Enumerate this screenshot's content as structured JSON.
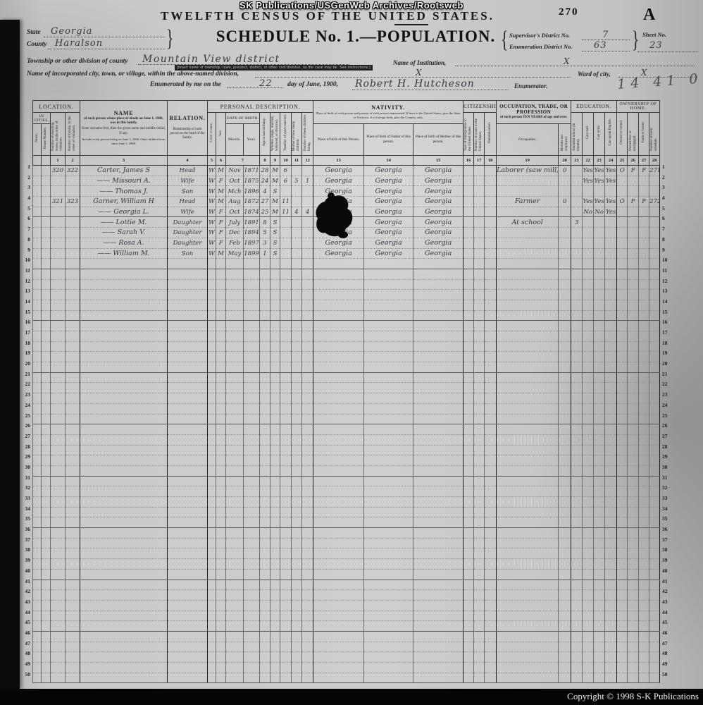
{
  "banner": {
    "text": "SK Publications/USGenWeb Archives/Rootsweb"
  },
  "header": {
    "census_title": "TWELFTH CENSUS OF THE UNITED STATES.",
    "page_stamp": "270",
    "sheet_letter": "A",
    "schedule_title": "SCHEDULE No. 1.—POPULATION.",
    "state_label": "State",
    "state_value": "Georgia",
    "county_label": "County",
    "county_value": "Haralson",
    "supervisor_label": "Supervisor's District No.",
    "supervisor_value": "7",
    "enumeration_label": "Enumeration District No.",
    "enumeration_value": "63",
    "sheet_label": "Sheet No.",
    "sheet_value": "23",
    "township_label": "Township or other division of county",
    "township_value": "Mountain View district",
    "township_note": "[Insert name of township, town, precinct, district, or other civil division, as the case may be.  See instructions.]",
    "institution_label": "Name of Institution,",
    "institution_value": "X",
    "city_label": "Name of incorporated city, town, or village, within the above-named division,",
    "city_value": "X",
    "ward_label": "Ward of city,",
    "ward_value": "X",
    "enumerated_prefix": "Enumerated by me on the",
    "enumerated_day": "22",
    "enumerated_suffix": "day of June, 1900,",
    "enumerator_name": "Robert H. Hutcheson",
    "enumerator_label": "Enumerator.",
    "margin_scribble": "14 41 01"
  },
  "table": {
    "groups": {
      "location": "LOCATION.",
      "in_cities": "IN CITIES.",
      "name": "NAME",
      "relation": "RELATION.",
      "personal": "PERSONAL DESCRIPTION.",
      "dob": "DATE OF BIRTH.",
      "nativity": "NATIVITY.",
      "citizenship": "CITIZENSHIP.",
      "occupation_title": "OCCUPATION, TRADE, OR PROFESSION",
      "occupation_sub": "of each person TEN YEARS of age and over.",
      "education": "EDUCATION.",
      "ownership": "OWNERSHIP OF HOME."
    },
    "columns": {
      "name_desc1": "of each person whose place of abode on June 1, 1900, was in this family.",
      "name_desc2": "Enter surname first, then the given name and middle initial, if any.",
      "name_desc3": "Include every person living on June 1, 1900. Omit children born since June 1, 1900.",
      "relation_desc": "Relationship of each person to the head of the family.",
      "nativity_desc": "Place of birth of each person and parents of each person enumerated.  If born in the United States, give the State or Territory; if of foreign birth, give the Country only.",
      "street": "Street.",
      "house": "House Number.",
      "dwelling": "Number of dwelling house, in the order of visitation.",
      "family": "Number of family, in the order of visitation.",
      "color": "Color or race.",
      "sex": "Sex.",
      "month": "Month.",
      "year": "Year.",
      "age": "Age at last birthday.",
      "marital": "Whether single, married, widowed, or divorced.",
      "yrs_married": "Number of years married.",
      "mother": "Mother of how many children.",
      "living": "Number of these children living.",
      "pob": "Place of birth of this Person.",
      "pob_father": "Place of birth of Father of this person.",
      "pob_mother": "Place of birth of Mother of this person.",
      "immig": "Year of immigration to the United States.",
      "yrs_us": "Number of years in the United States.",
      "natural": "Naturalization.",
      "occupation_col": "Occupation.",
      "months_unemp": "Months not employed.",
      "school": "Attended school (in months).",
      "read": "Can read.",
      "write": "Can write.",
      "english": "Can speak English.",
      "owned": "Owned or rented.",
      "free_mort": "Owned free or mortgaged.",
      "farm_house": "Farm or house.",
      "farm_sched": "Number of farm schedule."
    },
    "numbers": [
      "1",
      "2",
      "3",
      "4",
      "5",
      "6",
      "7",
      "8",
      "9",
      "10",
      "11",
      "12",
      "13",
      "14",
      "15",
      "16",
      "17",
      "18",
      "19",
      "20",
      "21",
      "22",
      "23",
      "24",
      "25",
      "26",
      "27",
      "28"
    ],
    "row_count": 50,
    "rows": [
      {
        "n": 1,
        "cells": [
          "",
          "",
          "320",
          "322",
          "Carter, James S",
          "Head",
          "W",
          "M",
          "Nov",
          "1871",
          "28",
          "M",
          "6",
          "",
          "",
          "Georgia",
          "Georgia",
          "Georgia",
          "",
          "",
          "",
          "Laborer (saw mill)",
          "0",
          "",
          "Yes",
          "Yes",
          "Yes",
          "O",
          "F",
          "F",
          "271"
        ]
      },
      {
        "n": 2,
        "cells": [
          "",
          "",
          "",
          "",
          "—— Missouri A.",
          "Wife",
          "W",
          "F",
          "Oct",
          "1875",
          "24",
          "M",
          "6",
          "5",
          "1",
          "Georgia",
          "Georgia",
          "Georgia",
          "",
          "",
          "",
          "",
          "",
          "",
          "Yes",
          "Yes",
          "Yes",
          "",
          "",
          "",
          ""
        ]
      },
      {
        "n": 3,
        "cells": [
          "",
          "",
          "",
          "",
          "—— Thomas J.",
          "Son",
          "W",
          "M",
          "Mch",
          "1896",
          "4",
          "S",
          "",
          "",
          "",
          "Georgia",
          "Georgia",
          "Georgia",
          "",
          "",
          "",
          "",
          "",
          "",
          "",
          "",
          "",
          "",
          "",
          "",
          ""
        ]
      },
      {
        "n": 4,
        "cells": [
          "",
          "",
          "321",
          "323",
          "Garner, William H",
          "Head",
          "W",
          "M",
          "Aug",
          "1872",
          "27",
          "M",
          "11",
          "",
          "",
          "Georgia",
          "Georgia",
          "Georgia",
          "",
          "",
          "",
          "Farmer",
          "0",
          "",
          "Yes",
          "Yes",
          "Yes",
          "O",
          "F",
          "F",
          "272"
        ]
      },
      {
        "n": 5,
        "cells": [
          "",
          "",
          "",
          "",
          "—— Georgia L.",
          "Wife",
          "W",
          "F",
          "Oct",
          "1874",
          "25",
          "M",
          "11",
          "4",
          "4",
          "Georgia",
          "Georgia",
          "Georgia",
          "",
          "",
          "",
          "",
          "",
          "",
          "No",
          "No",
          "Yes",
          "",
          "",
          "",
          ""
        ]
      },
      {
        "n": 6,
        "cells": [
          "",
          "",
          "",
          "",
          "—— Lottie M.",
          "Daughter",
          "W",
          "F",
          "July",
          "1891",
          "8",
          "S",
          "",
          "",
          "",
          "Georgia",
          "Georgia",
          "Georgia",
          "",
          "",
          "",
          "At school",
          "",
          "3",
          "",
          "",
          "",
          "",
          "",
          "",
          ""
        ]
      },
      {
        "n": 7,
        "cells": [
          "",
          "",
          "",
          "",
          "—— Sarah V.",
          "Daughter",
          "W",
          "F",
          "Dec",
          "1894",
          "5",
          "S",
          "",
          "",
          "",
          "Georgia",
          "Georgia",
          "Georgia",
          "",
          "",
          "",
          "",
          "",
          "",
          "",
          "",
          "",
          "",
          "",
          "",
          ""
        ]
      },
      {
        "n": 8,
        "cells": [
          "",
          "",
          "",
          "",
          "—— Rosa A.",
          "Daughter",
          "W",
          "F",
          "Feb",
          "1897",
          "3",
          "S",
          "",
          "",
          "",
          "Georgia",
          "Georgia",
          "Georgia",
          "",
          "",
          "",
          "",
          "",
          "",
          "",
          "",
          "",
          "",
          "",
          "",
          ""
        ]
      },
      {
        "n": 9,
        "cells": [
          "",
          "",
          "",
          "",
          "—— William M.",
          "Son",
          "W",
          "M",
          "May",
          "1899",
          "1",
          "S",
          "",
          "",
          "",
          "Georgia",
          "Georgia",
          "Georgia",
          "",
          "",
          "",
          "",
          "",
          "",
          "",
          "",
          "",
          "",
          "",
          "",
          ""
        ]
      }
    ]
  },
  "footer": {
    "copyright": "Copyright © 1998 S-K Publications"
  }
}
